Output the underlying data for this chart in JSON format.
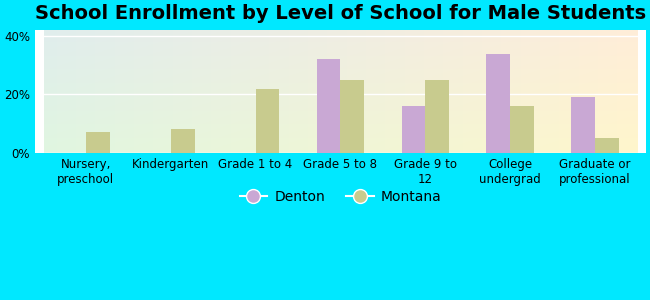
{
  "title": "School Enrollment by Level of School for Male Students",
  "categories": [
    "Nursery,\npreschool",
    "Kindergarten",
    "Grade 1 to 4",
    "Grade 5 to 8",
    "Grade 9 to\n12",
    "College\nundergrad",
    "Graduate or\nprofessional"
  ],
  "denton": [
    0,
    0,
    0,
    32,
    16,
    34,
    19
  ],
  "montana": [
    7,
    8,
    22,
    25,
    25,
    16,
    5
  ],
  "denton_color": "#c9a8d4",
  "montana_color": "#c8cb8e",
  "background_color": "#00e8ff",
  "ylim": [
    0,
    42
  ],
  "yticks": [
    0,
    20,
    40
  ],
  "ytick_labels": [
    "0%",
    "20%",
    "40%"
  ],
  "legend_labels": [
    "Denton",
    "Montana"
  ],
  "title_fontsize": 14,
  "tick_fontsize": 8.5,
  "legend_fontsize": 10,
  "bar_width": 0.28
}
